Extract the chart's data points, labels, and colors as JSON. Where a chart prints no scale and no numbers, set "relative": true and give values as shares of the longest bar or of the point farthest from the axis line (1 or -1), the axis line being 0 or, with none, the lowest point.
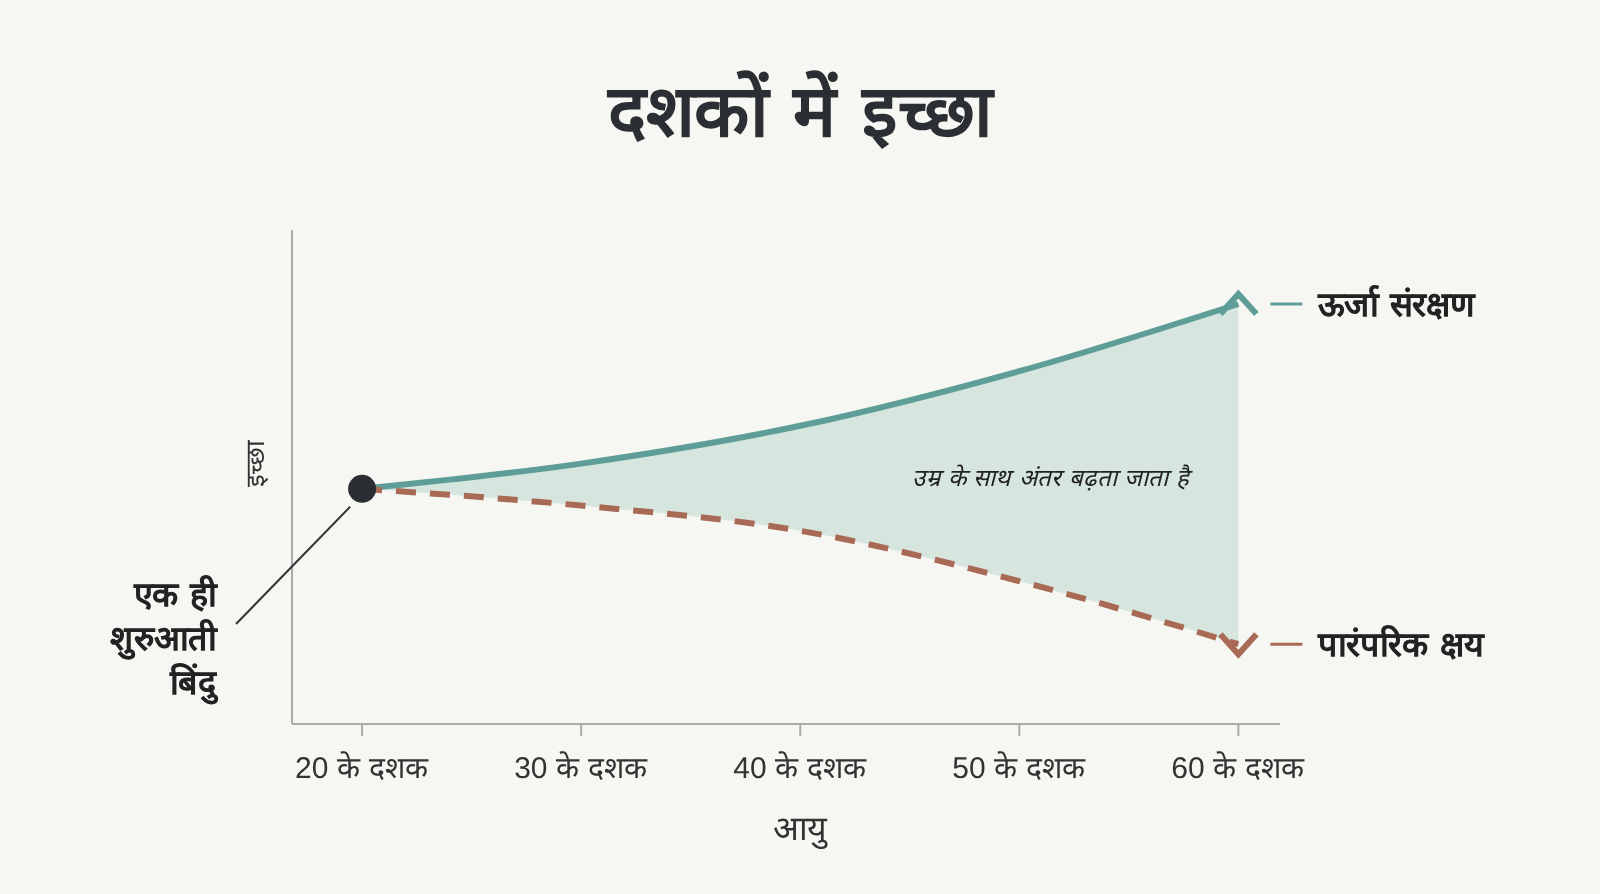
{
  "chart_data": {
    "type": "line",
    "title": "दशकों में इच्छा",
    "xlabel": "आयु",
    "ylabel": "इच्छा",
    "relative": true,
    "categories": [
      "20 के दशक",
      "30 के दशक",
      "40 के दशक",
      "50 के दशक",
      "60 के दशक"
    ],
    "series": [
      {
        "name": "ऊर्जा संरक्षण",
        "color": "#5f9e98",
        "line_style": "solid",
        "values": [
          0.56,
          0.62,
          0.71,
          0.84,
          1
        ],
        "lower": [
          0.56,
          0.52,
          0.46,
          0.34,
          0.19
        ],
        "upper": [
          0.56,
          0.62,
          0.71,
          0.84,
          1
        ]
      },
      {
        "name": "पारंपरिक क्षय",
        "color": "#a86a55",
        "line_style": "dashed",
        "values": [
          0.56,
          0.52,
          0.46,
          0.34,
          0.19
        ]
      }
    ],
    "annotations": [
      "एक ही शुरुआती बिंदु",
      "उम्र के साथ अंतर बढ़ता जाता है"
    ],
    "legend": "right"
  }
}
